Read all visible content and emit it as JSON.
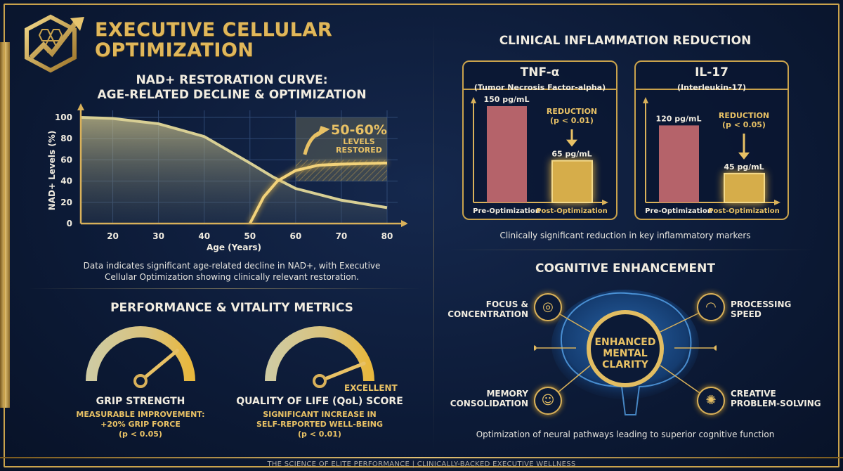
{
  "header": {
    "title_line1": "EXECUTIVE CELLULAR",
    "title_line2": "OPTIMIZATION",
    "logo": "hexagon-growth-arrow-logo"
  },
  "nad": {
    "title_line1": "NAD+ RESTORATION CURVE:",
    "title_line2": "AGE-RELATED DECLINE & OPTIMIZATION",
    "callout_pct": "50-60%",
    "callout_l1": "LEVELS",
    "callout_l2": "RESTORED",
    "caption": "Data indicates significant age-related decline in NAD+, with Executive Cellular Optimization showing clinically relevant restoration."
  },
  "performance": {
    "title": "PERFORMANCE & VITALITY METRICS",
    "gauges": [
      {
        "label": "GRIP STRENGTH",
        "level": 0.78,
        "detail_l1": "MEASURABLE IMPROVEMENT:",
        "detail_l2": "+20% GRIP FORCE",
        "detail_l3": "(p < 0.05)"
      },
      {
        "label": "QUALITY OF LIFE (QoL) SCORE",
        "level": 0.88,
        "badge": "EXCELLENT",
        "detail_l1": "SIGNIFICANT INCREASE IN",
        "detail_l2": "SELF-REPORTED WELL-BEING",
        "detail_l3": "(p < 0.01)"
      }
    ]
  },
  "inflammation": {
    "title": "CLINICAL INFLAMMATION REDUCTION",
    "caption": "Clinically significant reduction in key inflammatory markers",
    "panels": [
      {
        "name": "TNF-α",
        "subtitle": "(Tumor Necrosis Factor-alpha)",
        "reduction": "REDUCTION",
        "p": "(p < 0.01)"
      },
      {
        "name": "IL-17",
        "subtitle": "(Interleukin-17)",
        "reduction": "REDUCTION",
        "p": "(p < 0.05)"
      }
    ]
  },
  "cognitive": {
    "title": "COGNITIVE ENHANCEMENT",
    "center_l1": "ENHANCED",
    "center_l2": "MENTAL",
    "center_l3": "CLARITY",
    "items": [
      {
        "l1": "FOCUS &",
        "l2": "CONCENTRATION",
        "icon": "target-icon"
      },
      {
        "l1": "PROCESSING",
        "l2": "SPEED",
        "icon": "speedometer-icon"
      },
      {
        "l1": "MEMORY",
        "l2": "CONSOLIDATION",
        "icon": "head-brain-icon"
      },
      {
        "l1": "CREATIVE",
        "l2": "PROBLEM-SOLVING",
        "icon": "lightbulb-icon"
      }
    ],
    "caption": "Optimization of neural pathways leading to superior cognitive function"
  },
  "footer": "THE SCIENCE OF ELITE PERFORMANCE | CLINICALLY-BACKED EXECUTIVE WELLNESS",
  "colors": {
    "gold": "#e8c165",
    "navy": "#0c1a36",
    "bar_pre": "#b5636a"
  },
  "chart_data": [
    {
      "type": "line",
      "title": "NAD+ RESTORATION CURVE: AGE-RELATED DECLINE & OPTIMIZATION",
      "xlabel": "Age (Years)",
      "ylabel": "NAD+ Levels (%)",
      "xlim": [
        13,
        80
      ],
      "ylim": [
        0,
        100
      ],
      "xticks": [
        20,
        30,
        40,
        50,
        60,
        70,
        80
      ],
      "yticks": [
        0,
        20,
        40,
        60,
        80,
        100
      ],
      "grid": true,
      "highlight_band": [
        40,
        60
      ],
      "series": [
        {
          "x": [
            13,
            20,
            30,
            40,
            50,
            55,
            60,
            70,
            80
          ],
          "y": [
            100,
            99,
            94,
            82,
            57,
            44,
            33,
            22,
            15
          ]
        },
        {
          "x": [
            50,
            53,
            56,
            60,
            65,
            70,
            80
          ],
          "y": [
            0,
            25,
            40,
            50,
            55,
            56,
            57
          ]
        }
      ]
    },
    {
      "type": "bar",
      "title": "TNF-α",
      "categories": [
        "Pre-Optimization",
        "Post-Optimization"
      ],
      "values": [
        150,
        65
      ],
      "labels": [
        "150 pg/mL",
        "65 pg/mL"
      ],
      "ylim": [
        0,
        165
      ]
    },
    {
      "type": "bar",
      "title": "IL-17",
      "categories": [
        "Pre-Optimization",
        "Post-Optimization"
      ],
      "values": [
        120,
        45
      ],
      "labels": [
        "120 pg/mL",
        "45 pg/mL"
      ],
      "ylim": [
        0,
        165
      ]
    }
  ]
}
